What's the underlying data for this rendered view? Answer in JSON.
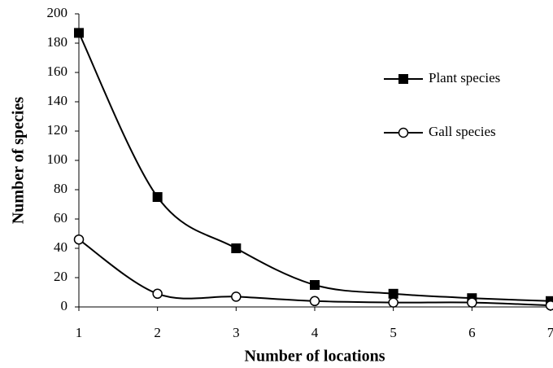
{
  "chart_data": {
    "type": "line",
    "x_label": "Number of locations",
    "y_label": "Number of species",
    "x": [
      1,
      2,
      3,
      4,
      5,
      6,
      7
    ],
    "series": [
      {
        "name": "Plant species",
        "color": "#000000",
        "marker": "square",
        "values": [
          187,
          75,
          40,
          15,
          9,
          6,
          4
        ]
      },
      {
        "name": "Gall species",
        "color": "#000000",
        "marker": "circle",
        "values": [
          46,
          9,
          7,
          4,
          3,
          3,
          1
        ]
      }
    ],
    "xlim": [
      1,
      7
    ],
    "xticks": [
      1,
      2,
      3,
      4,
      5,
      6,
      7
    ],
    "ylim": [
      0,
      200
    ],
    "yticks": [
      0,
      20,
      40,
      60,
      80,
      100,
      120,
      140,
      160,
      180,
      200
    ],
    "grid": false,
    "legend": "upper right"
  }
}
